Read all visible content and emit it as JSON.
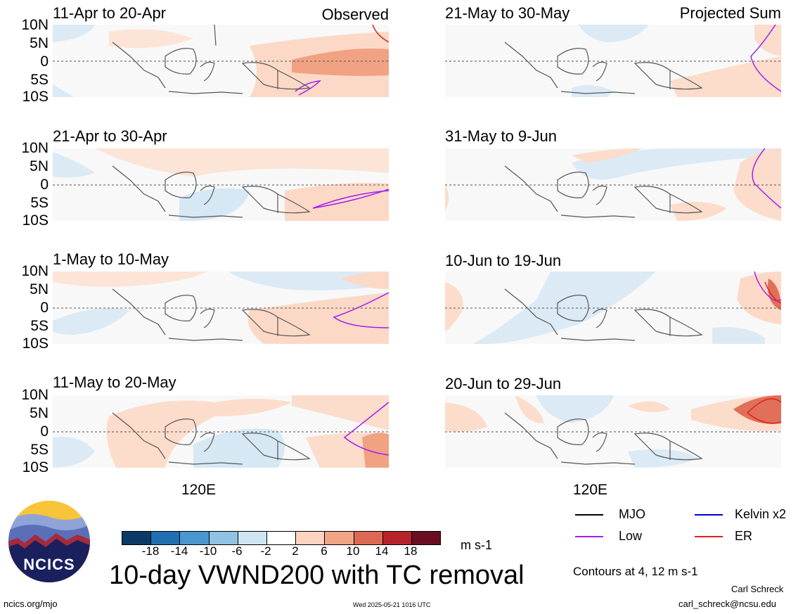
{
  "panels": [
    {
      "title": "11-Apr to 20-Apr",
      "tag": "Observed"
    },
    {
      "title": "21-Apr to 30-Apr",
      "tag": ""
    },
    {
      "title": "1-May to 10-May",
      "tag": ""
    },
    {
      "title": "11-May to 20-May",
      "tag": ""
    },
    {
      "title": "21-May to 30-May",
      "tag": "Projected Sum"
    },
    {
      "title": "31-May to 9-Jun",
      "tag": ""
    },
    {
      "title": "10-Jun to 19-Jun",
      "tag": ""
    },
    {
      "title": "20-Jun to 29-Jun",
      "tag": ""
    }
  ],
  "lat_labels": [
    "10N",
    "5N",
    "0",
    "5S",
    "10S"
  ],
  "lon_label": "120E",
  "colorbar": {
    "colors": [
      "#0b3a66",
      "#1f6fb2",
      "#4a97cf",
      "#8fc2e3",
      "#cfe5f3",
      "#ffffff",
      "#fbd5c2",
      "#f2a487",
      "#dc6a52",
      "#b8232b",
      "#6b0e22"
    ],
    "labels": [
      "-18",
      "-14",
      "-10",
      "-6",
      "-2",
      "2",
      "6",
      "10",
      "14",
      "18"
    ],
    "units": "m s-1"
  },
  "legend": [
    {
      "label": "MJO",
      "color": "#000000"
    },
    {
      "label": "Kelvin x2",
      "color": "#0000cc"
    },
    {
      "label": "Low",
      "color": "#a020f0"
    },
    {
      "label": "ER",
      "color": "#e02020"
    }
  ],
  "contour_note": "Contours at 4, 12 m s-1",
  "main_title": "10-day VWND200 with TC removal",
  "logo_text": "NCICS",
  "footer": {
    "url": "ncics.org/mjo",
    "timestamp": "Wed 2025-05-21 1016 UTC",
    "author": "Carl Schreck",
    "email": "carl_schreck@ncsu.edu"
  }
}
